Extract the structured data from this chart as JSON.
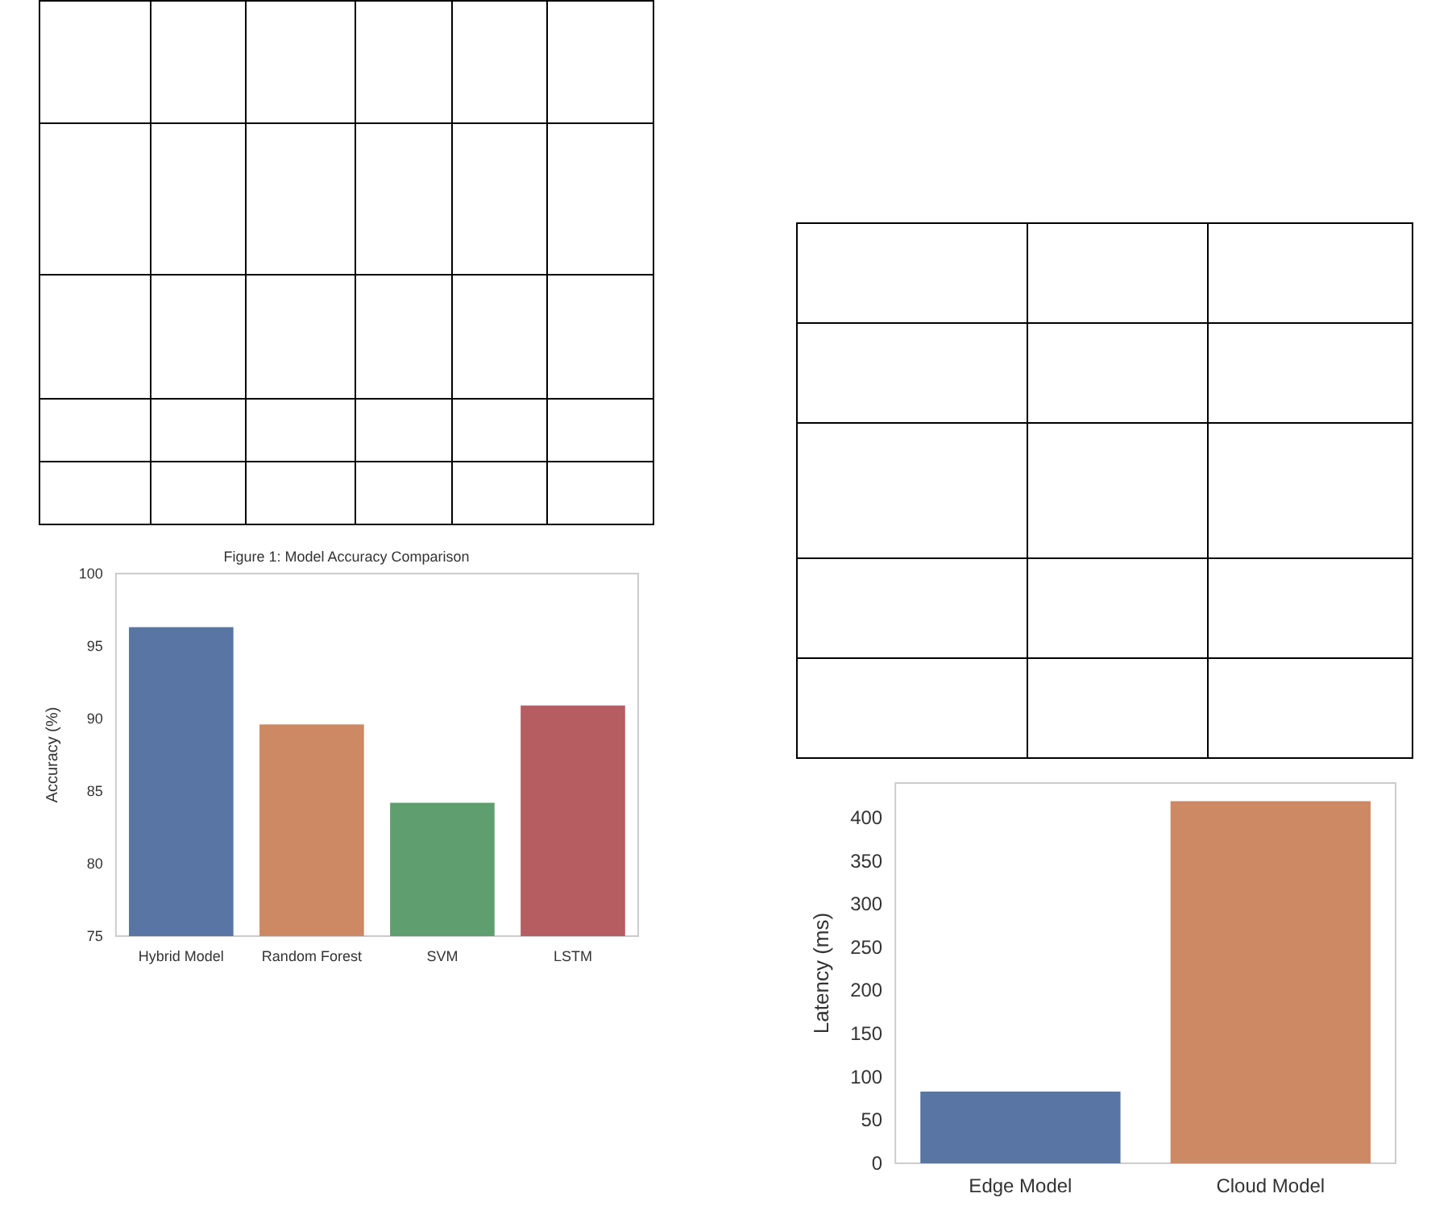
{
  "chart_data": [
    {
      "type": "bar",
      "title": "Figure 1: Model Accuracy Comparison",
      "ylabel": "Accuracy (%)",
      "categories": [
        "Hybrid Model",
        "Random Forest",
        "SVM",
        "LSTM"
      ],
      "values": [
        96.3,
        89.6,
        84.2,
        90.9
      ],
      "colors": [
        "#5875a4",
        "#cc8963",
        "#5f9e6e",
        "#b55d60"
      ],
      "ylim": [
        75,
        100
      ],
      "yticks": [
        75,
        80,
        85,
        90,
        95,
        100
      ],
      "grid": false
    },
    {
      "type": "bar",
      "ylabel": "Latency (ms)",
      "categories": [
        "Edge Model",
        "Cloud Model"
      ],
      "values": [
        83,
        419
      ],
      "colors": [
        "#5875a4",
        "#cc8963"
      ],
      "ylim": [
        0,
        440
      ],
      "yticks": [
        0,
        50,
        100,
        150,
        200,
        250,
        300,
        350,
        400
      ],
      "grid": false
    }
  ]
}
